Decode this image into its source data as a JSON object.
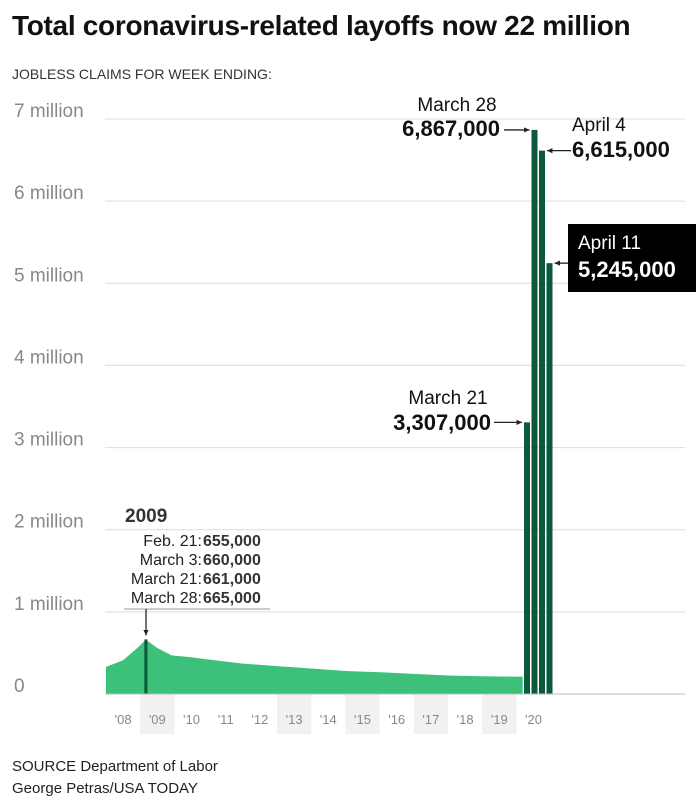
{
  "title": "Total coronavirus-related layoffs now 22 million",
  "subtitle": "JOBLESS CLAIMS FOR WEEK ENDING:",
  "source_line": "SOURCE Department of Labor",
  "credit_line": "George Petras/USA TODAY",
  "chart_data": {
    "type": "bar",
    "x_axis": {
      "type": "time",
      "ticks": [
        "'08",
        "'09",
        "'10",
        "'11",
        "'12",
        "'13",
        "'14",
        "'15",
        "'16",
        "'17",
        "'18",
        "'19",
        "'20"
      ],
      "shaded_years": [
        "'09",
        "'13",
        "'15",
        "'17",
        "'19"
      ]
    },
    "y_axis": {
      "min": 0,
      "max": 7000000,
      "ticks": [
        {
          "value": 0,
          "label": "0"
        },
        {
          "value": 1000000,
          "label": "1 million"
        },
        {
          "value": 2000000,
          "label": "2 million"
        },
        {
          "value": 3000000,
          "label": "3 million"
        },
        {
          "value": 4000000,
          "label": "4 million"
        },
        {
          "value": 5000000,
          "label": "5 million"
        },
        {
          "value": 6000000,
          "label": "6 million"
        },
        {
          "value": 7000000,
          "label": "7 million"
        }
      ],
      "grid": true
    },
    "colors": {
      "history": "#3cc07a",
      "highlight": "#0b5a3c",
      "box": "#000000"
    },
    "history_series": {
      "points": [
        {
          "date": "2008-01",
          "value": 330000
        },
        {
          "date": "2008-07",
          "value": 410000
        },
        {
          "date": "2008-12",
          "value": 560000
        },
        {
          "date": "2009-03",
          "value": 660000
        },
        {
          "date": "2009-07",
          "value": 560000
        },
        {
          "date": "2009-12",
          "value": 470000
        },
        {
          "date": "2010-06",
          "value": 450000
        },
        {
          "date": "2011-01",
          "value": 420000
        },
        {
          "date": "2012-01",
          "value": 370000
        },
        {
          "date": "2013-01",
          "value": 340000
        },
        {
          "date": "2014-01",
          "value": 310000
        },
        {
          "date": "2015-01",
          "value": 280000
        },
        {
          "date": "2016-01",
          "value": 265000
        },
        {
          "date": "2017-01",
          "value": 245000
        },
        {
          "date": "2018-01",
          "value": 225000
        },
        {
          "date": "2019-01",
          "value": 215000
        },
        {
          "date": "2020-03-07",
          "value": 211000
        }
      ]
    },
    "recession_2009": {
      "heading": "2009",
      "rows": [
        {
          "label": "Feb. 21:",
          "value": "655,000"
        },
        {
          "label": "March 3:",
          "value": "660,000"
        },
        {
          "label": "March 21:",
          "value": "661,000"
        },
        {
          "label": "March 28:",
          "value": "665,000"
        }
      ]
    },
    "highlight_weeks": [
      {
        "date": "March 21",
        "value": 3307000,
        "value_label": "3,307,000"
      },
      {
        "date": "March 28",
        "value": 6867000,
        "value_label": "6,867,000"
      },
      {
        "date": "April 4",
        "value": 6615000,
        "value_label": "6,615,000"
      },
      {
        "date": "April 11",
        "value": 5245000,
        "value_label": "5,245,000"
      }
    ]
  }
}
